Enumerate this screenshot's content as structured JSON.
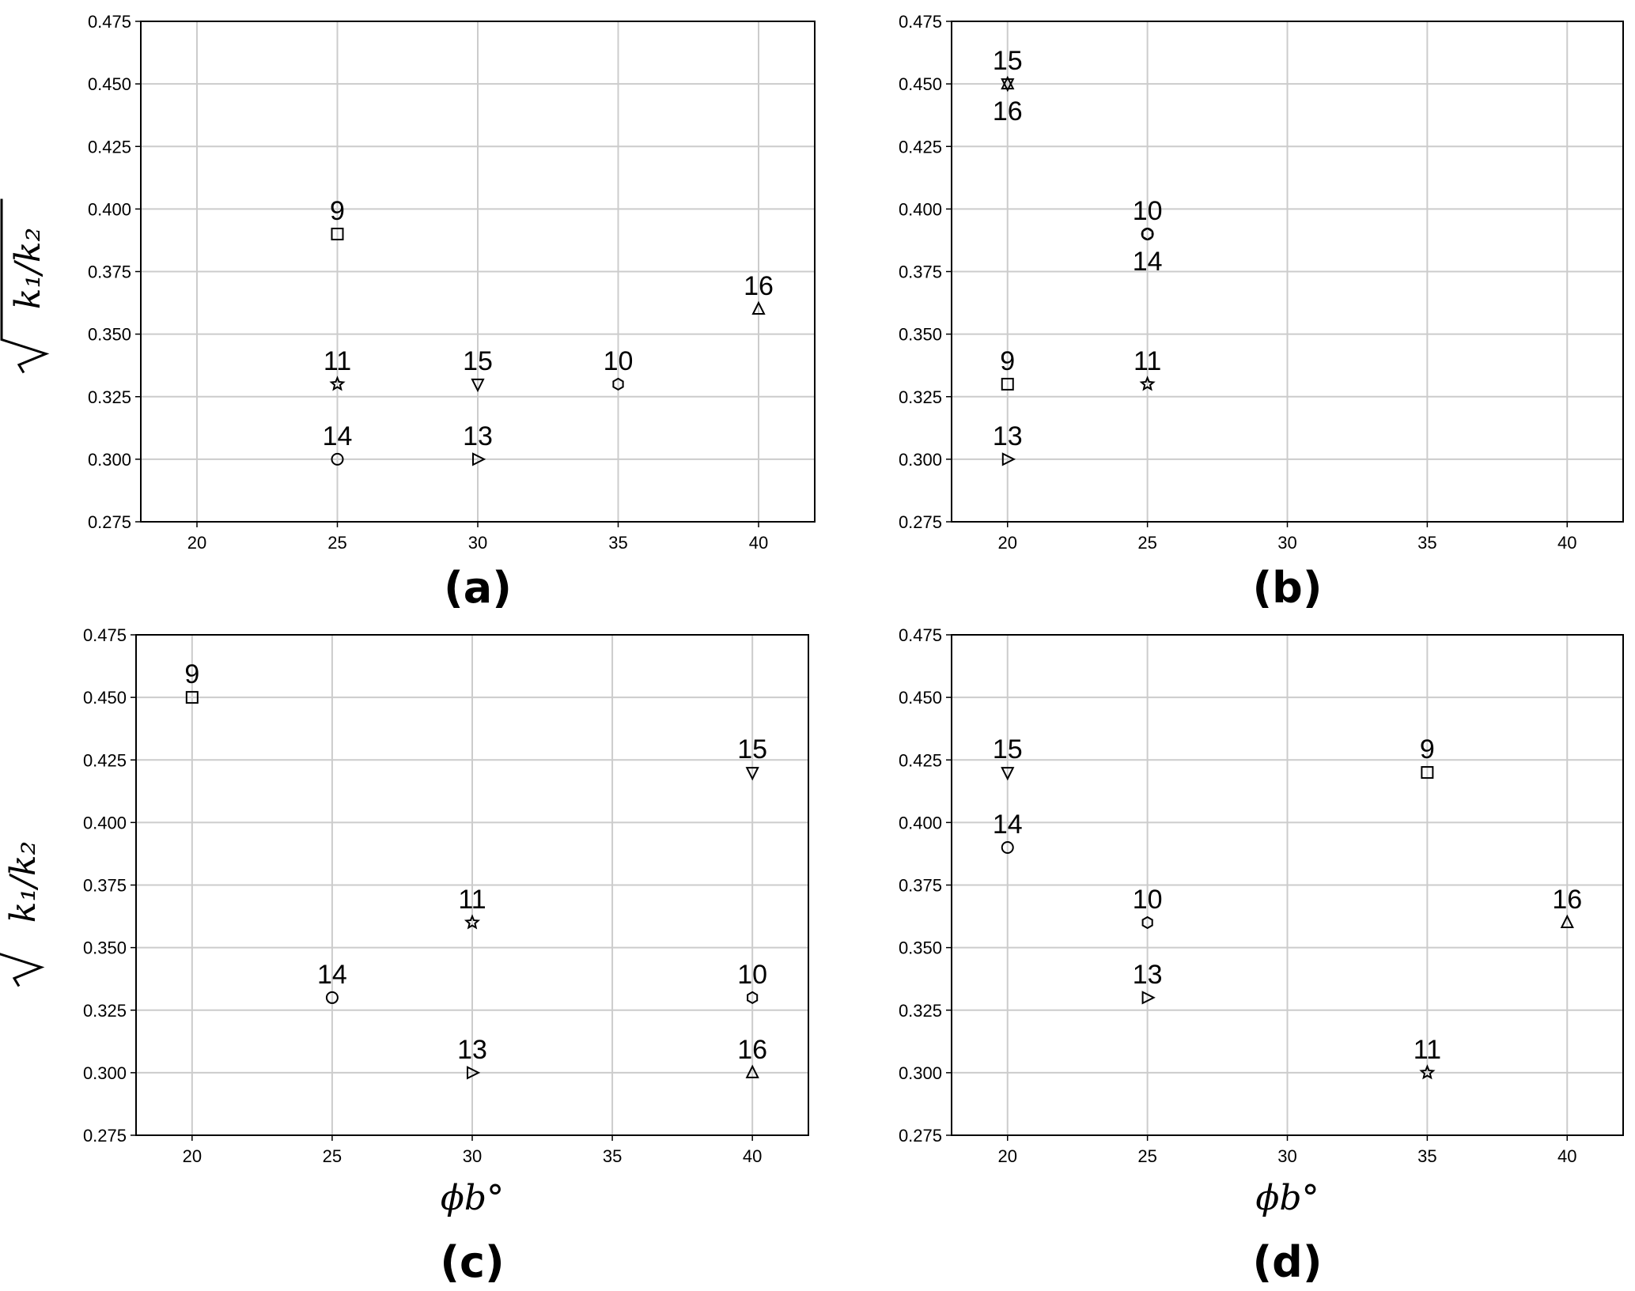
{
  "colors": {
    "grid": "#cccccc",
    "frame": "#000000",
    "marker": "#000000"
  },
  "chart_data": [
    {
      "type": "scatter",
      "panel_label": "(a)",
      "xlabel": "",
      "ylabel": "√k₁/k₂",
      "xlim": [
        18,
        42
      ],
      "ylim": [
        0.275,
        0.475
      ],
      "xticks": [
        "20",
        "25",
        "30",
        "35",
        "40"
      ],
      "yticks": [
        "0.275",
        "0.300",
        "0.325",
        "0.350",
        "0.375",
        "0.400",
        "0.425",
        "0.450",
        "0.475"
      ],
      "grid": true,
      "points": [
        {
          "label": "9",
          "x": 25,
          "y": 0.39,
          "marker": "square",
          "label_pos": "above"
        },
        {
          "label": "11",
          "x": 25,
          "y": 0.33,
          "marker": "star",
          "label_pos": "above"
        },
        {
          "label": "14",
          "x": 25,
          "y": 0.3,
          "marker": "circle",
          "label_pos": "above"
        },
        {
          "label": "15",
          "x": 30,
          "y": 0.33,
          "marker": "triangle-down",
          "label_pos": "above"
        },
        {
          "label": "13",
          "x": 30,
          "y": 0.3,
          "marker": "triangle-right",
          "label_pos": "above"
        },
        {
          "label": "10",
          "x": 35,
          "y": 0.33,
          "marker": "hexagon",
          "label_pos": "above"
        },
        {
          "label": "16",
          "x": 40,
          "y": 0.36,
          "marker": "triangle-up",
          "label_pos": "above"
        }
      ]
    },
    {
      "type": "scatter",
      "panel_label": "(b)",
      "xlabel": "",
      "ylabel": "",
      "xlim": [
        18,
        42
      ],
      "ylim": [
        0.275,
        0.475
      ],
      "xticks": [
        "20",
        "25",
        "30",
        "35",
        "40"
      ],
      "yticks": [
        "0.275",
        "0.300",
        "0.325",
        "0.350",
        "0.375",
        "0.400",
        "0.425",
        "0.450",
        "0.475"
      ],
      "grid": true,
      "points": [
        {
          "label": "15",
          "x": 20,
          "y": 0.45,
          "marker": "triangle-down",
          "label_pos": "above"
        },
        {
          "label": "16",
          "x": 20,
          "y": 0.45,
          "marker": "triangle-up",
          "label_pos": "below"
        },
        {
          "label": "9",
          "x": 20,
          "y": 0.33,
          "marker": "square",
          "label_pos": "above"
        },
        {
          "label": "13",
          "x": 20,
          "y": 0.3,
          "marker": "triangle-right",
          "label_pos": "above"
        },
        {
          "label": "10",
          "x": 25,
          "y": 0.39,
          "marker": "hexagon",
          "label_pos": "above"
        },
        {
          "label": "14",
          "x": 25,
          "y": 0.39,
          "marker": "circle",
          "label_pos": "below"
        },
        {
          "label": "11",
          "x": 25,
          "y": 0.33,
          "marker": "star",
          "label_pos": "above"
        }
      ]
    },
    {
      "type": "scatter",
      "panel_label": "(c)",
      "xlabel": "ϕb°",
      "ylabel": "√k₁/k₂",
      "xlim": [
        18,
        42
      ],
      "ylim": [
        0.275,
        0.475
      ],
      "xticks": [
        "20",
        "25",
        "30",
        "35",
        "40"
      ],
      "yticks": [
        "0.275",
        "0.300",
        "0.325",
        "0.350",
        "0.375",
        "0.400",
        "0.425",
        "0.450",
        "0.475"
      ],
      "grid": true,
      "points": [
        {
          "label": "9",
          "x": 20,
          "y": 0.45,
          "marker": "square",
          "label_pos": "above"
        },
        {
          "label": "14",
          "x": 25,
          "y": 0.33,
          "marker": "circle",
          "label_pos": "above"
        },
        {
          "label": "11",
          "x": 30,
          "y": 0.36,
          "marker": "star",
          "label_pos": "above"
        },
        {
          "label": "13",
          "x": 30,
          "y": 0.3,
          "marker": "triangle-right",
          "label_pos": "above"
        },
        {
          "label": "15",
          "x": 40,
          "y": 0.42,
          "marker": "triangle-down",
          "label_pos": "above"
        },
        {
          "label": "10",
          "x": 40,
          "y": 0.33,
          "marker": "hexagon",
          "label_pos": "above"
        },
        {
          "label": "16",
          "x": 40,
          "y": 0.3,
          "marker": "triangle-up",
          "label_pos": "above"
        }
      ]
    },
    {
      "type": "scatter",
      "panel_label": "(d)",
      "xlabel": "ϕb°",
      "ylabel": "",
      "xlim": [
        18,
        42
      ],
      "ylim": [
        0.275,
        0.475
      ],
      "xticks": [
        "20",
        "25",
        "30",
        "35",
        "40"
      ],
      "yticks": [
        "0.275",
        "0.300",
        "0.325",
        "0.350",
        "0.375",
        "0.400",
        "0.425",
        "0.450",
        "0.475"
      ],
      "grid": true,
      "points": [
        {
          "label": "15",
          "x": 20,
          "y": 0.42,
          "marker": "triangle-down",
          "label_pos": "above"
        },
        {
          "label": "14",
          "x": 20,
          "y": 0.39,
          "marker": "circle",
          "label_pos": "above"
        },
        {
          "label": "10",
          "x": 25,
          "y": 0.36,
          "marker": "hexagon",
          "label_pos": "above"
        },
        {
          "label": "13",
          "x": 25,
          "y": 0.33,
          "marker": "triangle-right",
          "label_pos": "above"
        },
        {
          "label": "9",
          "x": 35,
          "y": 0.42,
          "marker": "square",
          "label_pos": "above"
        },
        {
          "label": "11",
          "x": 35,
          "y": 0.3,
          "marker": "star",
          "label_pos": "above"
        },
        {
          "label": "16",
          "x": 40,
          "y": 0.36,
          "marker": "triangle-up",
          "label_pos": "above"
        }
      ]
    }
  ]
}
